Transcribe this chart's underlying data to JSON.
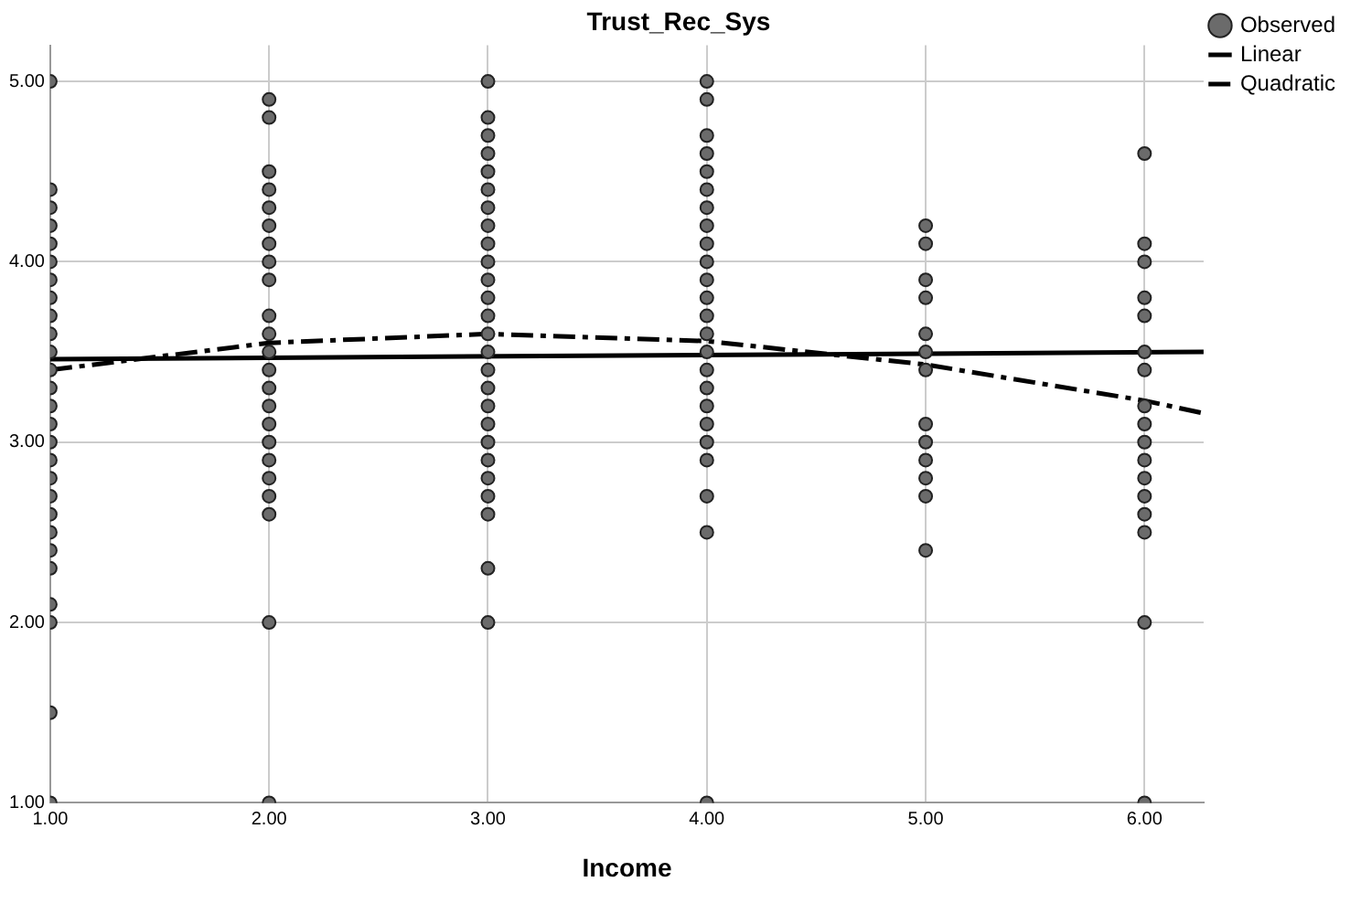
{
  "chart_data": {
    "type": "scatter",
    "title": "Trust_Rec_Sys",
    "xlabel": "Income",
    "xlim": [
      1,
      6.27
    ],
    "ylim": [
      1,
      5.2
    ],
    "xticks": [
      {
        "value": 1,
        "label": "1.00"
      },
      {
        "value": 2,
        "label": "2.00"
      },
      {
        "value": 3,
        "label": "3.00"
      },
      {
        "value": 4,
        "label": "4.00"
      },
      {
        "value": 5,
        "label": "5.00"
      },
      {
        "value": 6,
        "label": "6.00"
      }
    ],
    "yticks": [
      {
        "value": 1,
        "label": "1.00"
      },
      {
        "value": 2,
        "label": "2.00"
      },
      {
        "value": 3,
        "label": "3.00"
      },
      {
        "value": 4,
        "label": "4.00"
      },
      {
        "value": 5,
        "label": "5.00"
      }
    ],
    "grid": true,
    "legend": "top right",
    "series": [
      {
        "name": "Observed",
        "marker": "circle",
        "color": "#6b6b6b",
        "x": [
          1,
          1,
          1,
          1,
          1,
          1,
          1,
          1,
          1,
          1,
          1,
          1,
          1,
          1,
          1,
          1,
          1,
          1,
          1,
          1,
          1,
          1,
          1,
          1,
          1,
          1,
          1,
          2,
          2,
          2,
          2,
          2,
          2,
          2,
          2,
          2,
          2,
          2,
          2,
          2,
          2,
          2,
          2,
          2,
          2,
          2,
          2,
          2,
          2,
          2,
          3,
          3,
          3,
          3,
          3,
          3,
          3,
          3,
          3,
          3,
          3,
          3,
          3,
          3,
          3,
          3,
          3,
          3,
          3,
          3,
          3,
          3,
          3,
          3,
          3,
          3,
          4,
          4,
          4,
          4,
          4,
          4,
          4,
          4,
          4,
          4,
          4,
          4,
          4,
          4,
          4,
          4,
          4,
          4,
          4,
          4,
          4,
          4,
          4,
          4,
          5,
          5,
          5,
          5,
          5,
          5,
          5,
          5,
          5,
          5,
          5,
          5,
          5,
          6,
          6,
          6,
          6,
          6,
          6,
          6,
          6,
          6,
          6,
          6,
          6,
          6,
          6,
          6,
          6,
          6
        ],
        "values": [
          5.0,
          4.4,
          4.3,
          4.2,
          4.1,
          4.0,
          3.9,
          3.8,
          3.7,
          3.6,
          3.5,
          3.4,
          3.3,
          3.2,
          3.1,
          3.0,
          2.9,
          2.8,
          2.7,
          2.6,
          2.5,
          2.4,
          2.3,
          2.1,
          2.0,
          1.5,
          1.0,
          4.9,
          4.8,
          4.5,
          4.4,
          4.3,
          4.2,
          4.1,
          4.0,
          3.9,
          3.7,
          3.6,
          3.5,
          3.4,
          3.3,
          3.2,
          3.1,
          3.0,
          2.9,
          2.8,
          2.7,
          2.6,
          2.0,
          1.0,
          5.0,
          4.8,
          4.7,
          4.6,
          4.5,
          4.4,
          4.3,
          4.2,
          4.1,
          4.0,
          3.9,
          3.8,
          3.7,
          3.6,
          3.5,
          3.4,
          3.3,
          3.2,
          3.1,
          3.0,
          2.9,
          2.8,
          2.7,
          2.6,
          2.3,
          2.0,
          5.0,
          4.9,
          4.7,
          4.6,
          4.5,
          4.4,
          4.3,
          4.2,
          4.1,
          4.0,
          3.9,
          3.8,
          3.7,
          3.6,
          3.5,
          3.4,
          3.3,
          3.2,
          3.1,
          3.0,
          2.9,
          2.7,
          2.5,
          1.0,
          4.2,
          4.1,
          3.9,
          3.8,
          3.6,
          3.5,
          3.4,
          3.1,
          3.0,
          2.9,
          2.8,
          2.7,
          2.4,
          4.6,
          4.1,
          4.0,
          3.8,
          3.7,
          3.5,
          3.4,
          3.2,
          3.1,
          3.0,
          2.9,
          2.8,
          2.7,
          2.6,
          2.5,
          2.0,
          1.0
        ]
      },
      {
        "name": "Linear",
        "type": "line",
        "marker": "none",
        "line_style": "solid",
        "color": "#000000",
        "x": [
          1,
          6.27
        ],
        "values": [
          3.46,
          3.5
        ]
      },
      {
        "name": "Quadratic",
        "type": "line",
        "marker": "none",
        "line_style": "dashed",
        "color": "#000000",
        "x": [
          1,
          2,
          3,
          4,
          5,
          6,
          6.27
        ],
        "values": [
          3.4,
          3.55,
          3.6,
          3.56,
          3.43,
          3.23,
          3.16
        ]
      }
    ]
  }
}
